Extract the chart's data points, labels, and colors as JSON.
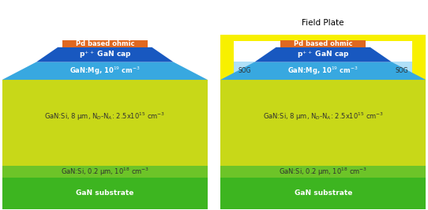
{
  "colors": {
    "substrate": "#3db520",
    "gan_si_02": "#6dc428",
    "gan_si_8": "#c8d818",
    "gan_mg": "#38a8e0",
    "p_gan_cap": "#1858c0",
    "pd_ohmic": "#e06820",
    "sog": "#b0e0f8",
    "field_plate": "#f8f000",
    "background": "#ffffff",
    "text_dark": "#303030",
    "text_white": "#ffffff"
  },
  "labels": {
    "pd_ohmic": "Pd based ohmic",
    "p_cap": "p$^{++}$ GaN cap",
    "gan_mg": "GaN:Mg, 10$^{19}$ cm$^{-3}$",
    "gan_si_8": "GaN:Si, 8 μm, N$_D$-N$_A$: 2.5x10$^{15}$ cm$^{-3}$",
    "gan_si_02": "GaN:Si, 0.2 μm, 10$^{18}$ cm$^{-3}$",
    "substrate": "GaN substrate",
    "field_plate": "Field Plate",
    "sog": "SOG"
  },
  "fig_width": 5.42,
  "fig_height": 2.66,
  "dpi": 100
}
